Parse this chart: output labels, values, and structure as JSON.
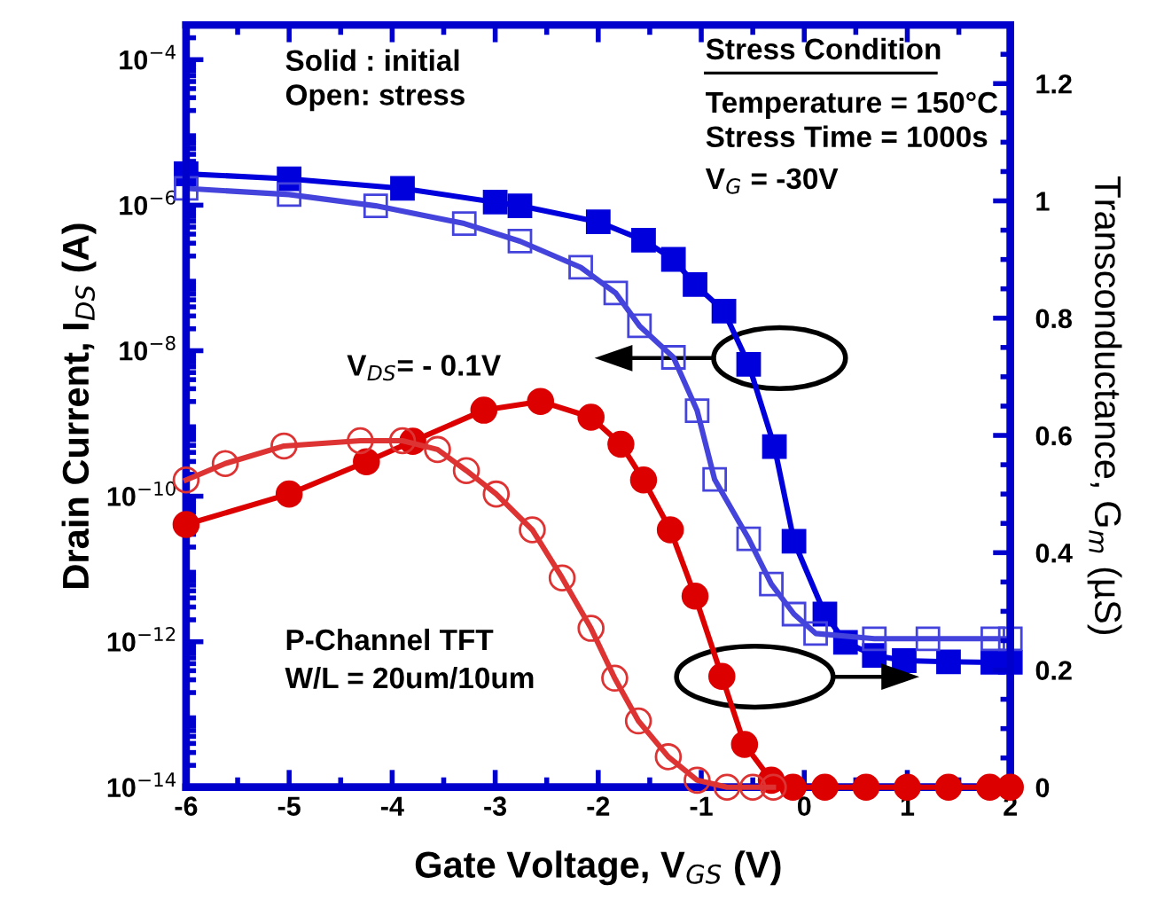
{
  "chart_data": {
    "type": "line",
    "xlabel": "Gate Voltage, V$_{GS}$ (V)",
    "ylabel": "Drain Current, I$_{DS}$ (A)",
    "y2label": "Transconductance, G$_{m}$ (µS)",
    "log": "y",
    "grid": false,
    "legend": false,
    "line_style": "solid",
    "xlim": [
      -6,
      2
    ],
    "xticks": [
      -6,
      -5,
      -4,
      -3,
      -2,
      -1,
      0,
      1,
      2
    ],
    "ylim": [
      1e-14,
      0.0003
    ],
    "yticks": [
      {
        "value": 1e-14,
        "label": "10$^{−14}$"
      },
      {
        "value": 1e-12,
        "label": "10$^{−12}$"
      },
      {
        "value": 1e-10,
        "label": "10$^{−10}$"
      },
      {
        "value": 1e-08,
        "label": "10$^{−8}$"
      },
      {
        "value": 1e-06,
        "label": "10$^{−6}$"
      },
      {
        "value": 0.0001,
        "label": "10$^{−4}$"
      }
    ],
    "y2lim": [
      0,
      1.3
    ],
    "y2ticks": [
      0,
      0.2,
      0.4,
      0.6,
      0.8,
      1,
      1.2
    ],
    "annotations": [
      "Solid : initial",
      "Open: stress",
      "Stress Condition",
      "Temperature = 150°C",
      "Stress Time = 1000s",
      "V$_{G}$ = -30V",
      "V$_{DS}$= - 0.1V",
      "P-Channel TFT",
      "W/L = 20um/10um"
    ],
    "series": [
      {
        "color": "#0000dd",
        "axis": "y",
        "marker": "square",
        "x": [
          -6,
          -5,
          -3.9,
          -3,
          -2.76,
          -2,
          -1.56,
          -1.27,
          -1.06,
          -0.78,
          -0.54,
          -0.29,
          -0.1,
          0.2,
          0.4,
          0.68,
          0.97,
          1.4,
          1.83,
          2
        ],
        "values": [
          2.7e-06,
          2.3e-06,
          1.7e-06,
          1.1e-06,
          9.8e-07,
          5.9e-07,
          3.3e-07,
          1.8e-07,
          8.1e-08,
          3.5e-08,
          6.5e-09,
          4.8e-10,
          2.4e-11,
          2.4e-12,
          9.8e-13,
          6.5e-13,
          5.5e-13,
          5.3e-13,
          5.2e-13,
          5.2e-13
        ]
      },
      {
        "color": "#4444dd",
        "axis": "y",
        "marker": "square",
        "x": [
          -6,
          -5,
          -4.16,
          -3.3,
          -2.76,
          -2.17,
          -1.83,
          -1.6,
          -1.27,
          -1.04,
          -0.87,
          -0.54,
          -0.32,
          -0.1,
          0.11,
          0.68,
          1.2,
          1.83,
          2
        ],
        "values": [
          1.7e-06,
          1.4e-06,
          9.8e-07,
          5.6e-07,
          3.2e-07,
          1.4e-07,
          6.2e-08,
          2.2e-08,
          8.1e-09,
          1.5e-09,
          1.7e-10,
          2.6e-11,
          6.2e-12,
          2.4e-12,
          1.3e-12,
          1.1e-12,
          1.1e-12,
          1.1e-12,
          1.1e-12
        ]
      },
      {
        "color": "#dd0000",
        "axis": "y2",
        "marker": "circle",
        "x": [
          -6,
          -5,
          -4.25,
          -3.8,
          -3.11,
          -2.56,
          -2.07,
          -1.78,
          -1.56,
          -1.3,
          -1.06,
          -0.8,
          -0.58,
          -0.32,
          -0.11,
          0.2,
          0.6,
          1,
          1.4,
          1.8,
          2
        ],
        "values": [
          0.448,
          0.5,
          0.555,
          0.59,
          0.643,
          0.658,
          0.631,
          0.585,
          0.524,
          0.439,
          0.326,
          0.189,
          0.073,
          0.012,
          0,
          0,
          0,
          0,
          0,
          0,
          0
        ]
      },
      {
        "color": "#dd3333",
        "axis": "y2",
        "marker": "circle",
        "x": [
          -6,
          -5.62,
          -5.05,
          -4.31,
          -3.9,
          -3.56,
          -3.28,
          -2.99,
          -2.64,
          -2.35,
          -2.07,
          -1.84,
          -1.61,
          -1.32,
          -1.04,
          -0.75,
          -0.5,
          -0.3
        ],
        "values": [
          0.524,
          0.552,
          0.582,
          0.591,
          0.591,
          0.576,
          0.54,
          0.5,
          0.439,
          0.357,
          0.271,
          0.186,
          0.113,
          0.052,
          0.012,
          0,
          0,
          0
        ]
      }
    ]
  }
}
